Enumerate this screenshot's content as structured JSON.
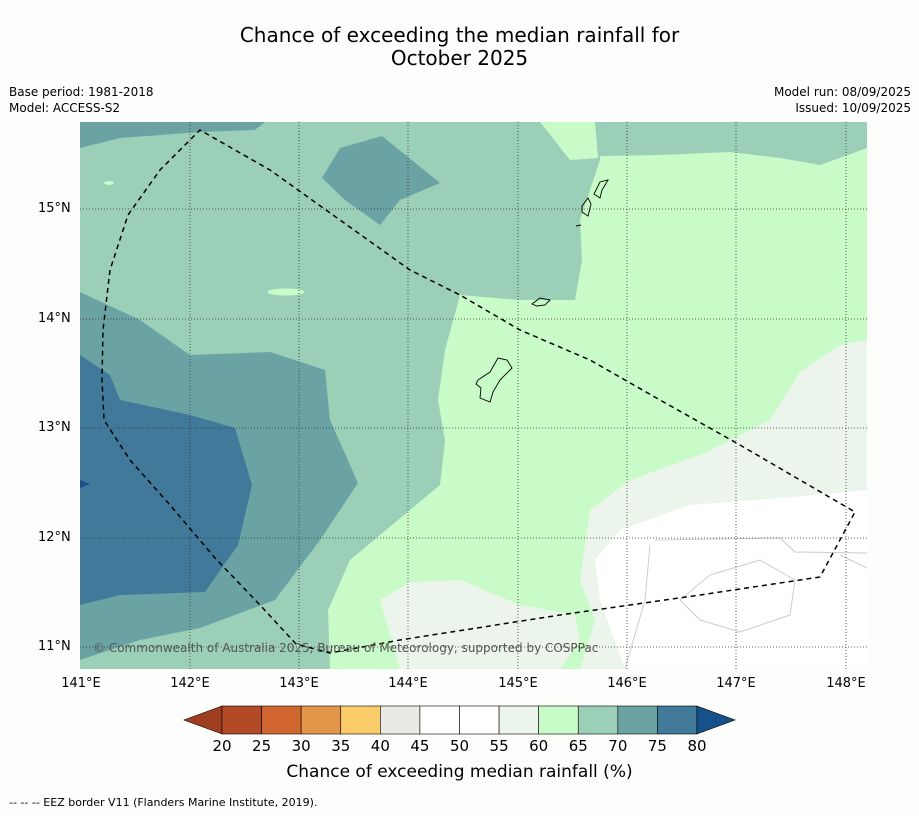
{
  "title_line1": "Chance of exceeding the median rainfall for",
  "title_line2": "October 2025",
  "base_period": "Base period: 1981-2018",
  "model": "Model: ACCESS-S2",
  "model_run": "Model run: 08/09/2025",
  "issued": "Issued: 10/09/2025",
  "lat_ticks": [
    "15°N",
    "14°N",
    "13°N",
    "12°N",
    "11°N"
  ],
  "lon_ticks": [
    "141°E",
    "142°E",
    "143°E",
    "144°E",
    "145°E",
    "146°E",
    "147°E",
    "148°E"
  ],
  "colorbar": {
    "ticks": [
      "20",
      "25",
      "30",
      "35",
      "40",
      "45",
      "50",
      "55",
      "60",
      "65",
      "70",
      "75",
      "80"
    ],
    "colors": [
      "#b34a26",
      "#d0662f",
      "#e3964a",
      "#fccc6a",
      "#eae9e3",
      "#ffffff",
      "#ffffff",
      "#ecf5ec",
      "#c8fbc8",
      "#9bcfb8",
      "#6ba3a5",
      "#40799a"
    ],
    "under_color": "#9e3d20",
    "over_color": "#17508a",
    "title": "Chance of exceeding median rainfall (%)"
  },
  "copyright": "© Commonwealth of Australia 2025, Bureau of Meteorology, supported by COSPPac",
  "footer": "--  --  -- EEZ border V11 (Flanders Marine Institute, 2019)."
}
